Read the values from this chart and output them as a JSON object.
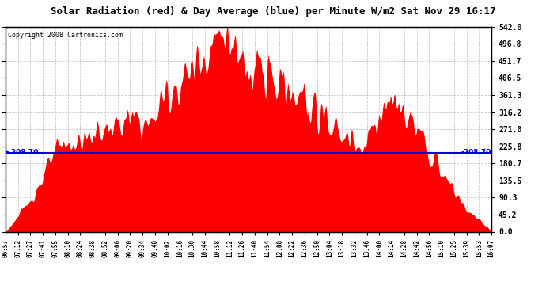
{
  "title": "Solar Radiation (red) & Day Average (blue) per Minute W/m2 Sat Nov 29 16:17",
  "copyright": "Copyright 2008 Cartronics.com",
  "y_max": 542.0,
  "y_min": 0.0,
  "y_ticks": [
    0.0,
    45.2,
    90.3,
    135.5,
    180.7,
    225.8,
    271.0,
    316.2,
    361.3,
    406.5,
    451.7,
    496.8,
    542.0
  ],
  "day_average": 208.7,
  "fill_color": "#FF0000",
  "line_color": "#0000DD",
  "background_color": "#FFFFFF",
  "grid_color": "#BBBBBB",
  "title_fontsize": 9,
  "x_labels": [
    "06:57",
    "07:12",
    "07:27",
    "07:41",
    "07:55",
    "08:10",
    "08:24",
    "08:38",
    "08:52",
    "09:06",
    "09:20",
    "09:34",
    "09:48",
    "10:02",
    "10:16",
    "10:30",
    "10:44",
    "10:58",
    "11:12",
    "11:26",
    "11:40",
    "11:54",
    "12:08",
    "12:22",
    "12:36",
    "12:50",
    "13:04",
    "13:18",
    "13:32",
    "13:46",
    "14:00",
    "14:14",
    "14:28",
    "14:42",
    "14:56",
    "15:10",
    "15:25",
    "15:39",
    "15:53",
    "16:07"
  ]
}
